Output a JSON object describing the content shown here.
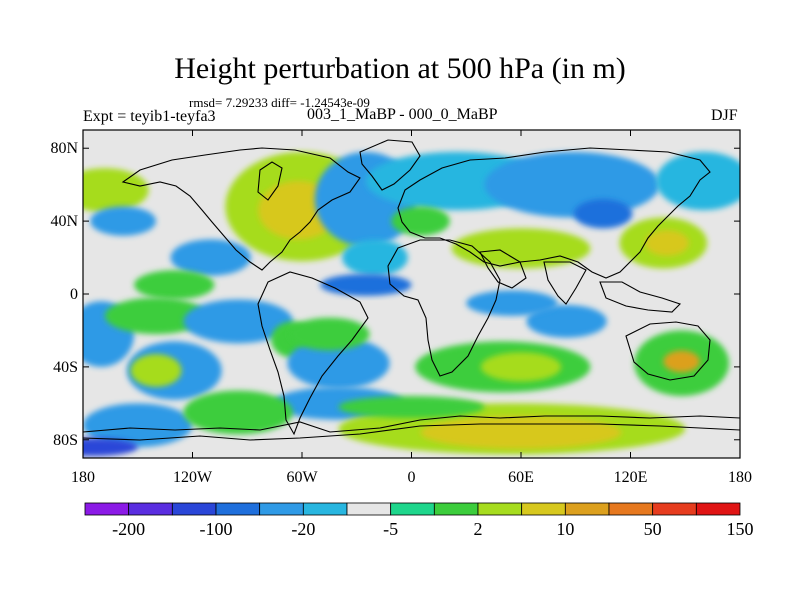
{
  "title": "Height perturbation at 500 hPa (in m)",
  "subtitle_stats": "rmsd= 7.29233 diff= -1.24543e-09",
  "experiment": "Expt = teyib1-teyfa3",
  "comparison": "003_1_MaBP - 000_0_MaBP",
  "season": "DJF",
  "axes": {
    "lat_labels": [
      "80N",
      "40N",
      "0",
      "40S",
      "80S"
    ],
    "lat_values": [
      80,
      40,
      0,
      -40,
      -80
    ],
    "lon_labels": [
      "180",
      "120W",
      "60W",
      "0",
      "60E",
      "120E",
      "180"
    ],
    "lon_values": [
      -180,
      -120,
      -60,
      0,
      60,
      120,
      180
    ]
  },
  "colorbar": {
    "colors": [
      "#8b1ae6",
      "#5a2de0",
      "#2a46d8",
      "#1f6fdc",
      "#2f9ae6",
      "#28b6e0",
      "#e6e6e6",
      "#1ed68c",
      "#3ccd3c",
      "#a6dc1e",
      "#d7c81e",
      "#dca01e",
      "#e6781e",
      "#e63c1e",
      "#e01414"
    ],
    "labels": [
      "-200",
      "-100",
      "-20",
      "-5",
      "2",
      "10",
      "50",
      "150"
    ]
  },
  "field_blobs": [
    {
      "lon": -60,
      "lat": 48,
      "rx": 42,
      "ry": 30,
      "level": 9
    },
    {
      "lon": -62,
      "lat": 46,
      "rx": 22,
      "ry": 16,
      "level": 10
    },
    {
      "lon": -168,
      "lat": 57,
      "rx": 24,
      "ry": 12,
      "level": 9
    },
    {
      "lon": -158,
      "lat": 40,
      "rx": 18,
      "ry": 8,
      "level": 4
    },
    {
      "lon": -110,
      "lat": 20,
      "rx": 22,
      "ry": 10,
      "level": 4
    },
    {
      "lon": -130,
      "lat": 5,
      "rx": 22,
      "ry": 8,
      "level": 8
    },
    {
      "lon": -25,
      "lat": 52,
      "rx": 28,
      "ry": 26,
      "level": 4
    },
    {
      "lon": 25,
      "lat": 62,
      "rx": 50,
      "ry": 16,
      "level": 5
    },
    {
      "lon": 88,
      "lat": 60,
      "rx": 48,
      "ry": 18,
      "level": 4
    },
    {
      "lon": 105,
      "lat": 44,
      "rx": 16,
      "ry": 8,
      "level": 3
    },
    {
      "lon": 160,
      "lat": 62,
      "rx": 26,
      "ry": 16,
      "level": 5
    },
    {
      "lon": 5,
      "lat": 40,
      "rx": 16,
      "ry": 8,
      "level": 8
    },
    {
      "lon": 60,
      "lat": 25,
      "rx": 38,
      "ry": 11,
      "level": 9
    },
    {
      "lon": 138,
      "lat": 28,
      "rx": 24,
      "ry": 14,
      "level": 9
    },
    {
      "lon": 140,
      "lat": 28,
      "rx": 12,
      "ry": 7,
      "level": 10
    },
    {
      "lon": -20,
      "lat": 20,
      "rx": 18,
      "ry": 10,
      "level": 5
    },
    {
      "lon": -170,
      "lat": -22,
      "rx": 18,
      "ry": 18,
      "level": 4
    },
    {
      "lon": -140,
      "lat": -12,
      "rx": 28,
      "ry": 10,
      "level": 8
    },
    {
      "lon": -95,
      "lat": -15,
      "rx": 30,
      "ry": 12,
      "level": 4
    },
    {
      "lon": -130,
      "lat": -42,
      "rx": 26,
      "ry": 16,
      "level": 4
    },
    {
      "lon": -140,
      "lat": -42,
      "rx": 14,
      "ry": 9,
      "level": 9
    },
    {
      "lon": -65,
      "lat": -25,
      "rx": 12,
      "ry": 10,
      "level": 8
    },
    {
      "lon": -40,
      "lat": -38,
      "rx": 28,
      "ry": 14,
      "level": 4
    },
    {
      "lon": -45,
      "lat": -22,
      "rx": 22,
      "ry": 9,
      "level": 8
    },
    {
      "lon": 50,
      "lat": -40,
      "rx": 48,
      "ry": 14,
      "level": 8
    },
    {
      "lon": 60,
      "lat": -40,
      "rx": 22,
      "ry": 8,
      "level": 9
    },
    {
      "lon": 85,
      "lat": -15,
      "rx": 22,
      "ry": 9,
      "level": 4
    },
    {
      "lon": 55,
      "lat": -5,
      "rx": 25,
      "ry": 7,
      "level": 4
    },
    {
      "lon": 148,
      "lat": -38,
      "rx": 26,
      "ry": 18,
      "level": 8
    },
    {
      "lon": 148,
      "lat": -37,
      "rx": 10,
      "ry": 6,
      "level": 11
    },
    {
      "lon": -150,
      "lat": -72,
      "rx": 30,
      "ry": 12,
      "level": 4
    },
    {
      "lon": -40,
      "lat": -60,
      "rx": 36,
      "ry": 9,
      "level": 4
    },
    {
      "lon": -95,
      "lat": -65,
      "rx": 30,
      "ry": 12,
      "level": 8
    },
    {
      "lon": 55,
      "lat": -74,
      "rx": 95,
      "ry": 14,
      "level": 9
    },
    {
      "lon": 60,
      "lat": -76,
      "rx": 55,
      "ry": 9,
      "level": 10
    },
    {
      "lon": 0,
      "lat": -62,
      "rx": 40,
      "ry": 6,
      "level": 8
    },
    {
      "lon": -175,
      "lat": -84,
      "rx": 25,
      "ry": 5,
      "level": 2
    },
    {
      "lon": -25,
      "lat": 5,
      "rx": 25,
      "ry": 6,
      "level": 3
    }
  ]
}
